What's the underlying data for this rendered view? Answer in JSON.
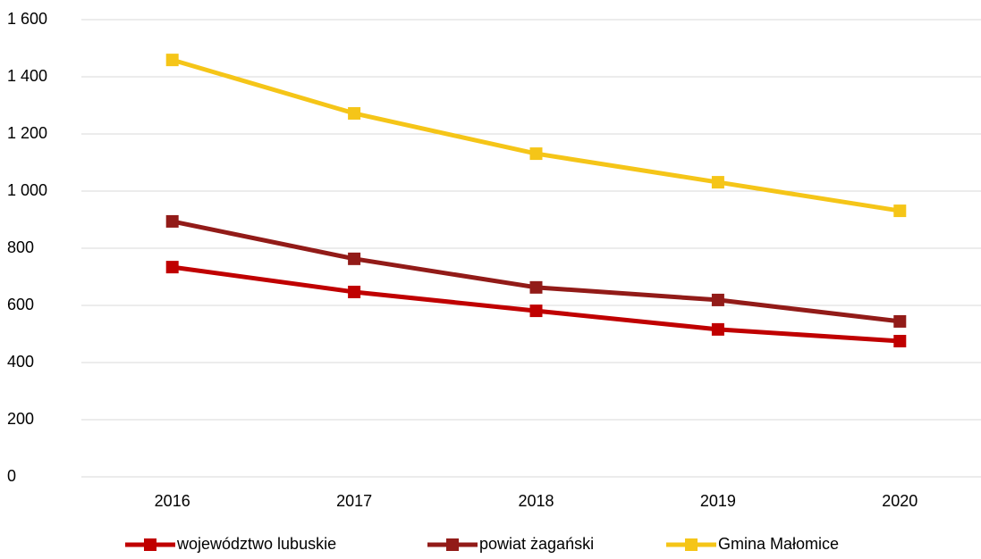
{
  "chart_data": {
    "type": "line",
    "categories": [
      "2016",
      "2017",
      "2018",
      "2019",
      "2020"
    ],
    "series": [
      {
        "name": "województwo lubuskie",
        "color": "#c00000",
        "values": [
          734,
          647,
          581,
          516,
          475
        ]
      },
      {
        "name": "powiat żagański",
        "color": "#921b18",
        "values": [
          894,
          763,
          663,
          619,
          544
        ]
      },
      {
        "name": "Gmina Małomice",
        "color": "#f5c518",
        "values": [
          1459,
          1272,
          1131,
          1031,
          931
        ]
      }
    ],
    "ylim": [
      0,
      1600
    ],
    "yticks": [
      0,
      200,
      400,
      600,
      800,
      {
        "value": 1000,
        "label": "1 000"
      },
      {
        "value": 1200,
        "label": "1 200"
      },
      {
        "value": 1400,
        "label": "1 400"
      },
      {
        "value": 1600,
        "label": "1 600"
      }
    ],
    "grid": true,
    "legend": "bottom"
  }
}
